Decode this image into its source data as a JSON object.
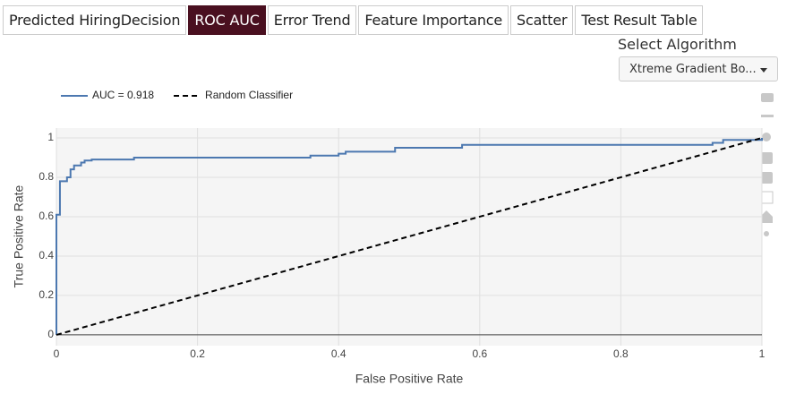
{
  "tabs": [
    "Predicted HiringDecision",
    "ROC AUC",
    "Error Trend",
    "Feature Importance",
    "Scatter",
    "Test Result Table"
  ],
  "active_tab": 1,
  "select": {
    "label": "Select Algorithm",
    "value": "Xtreme Gradient Bo..."
  },
  "chart_data": {
    "type": "line",
    "x_label": "False Positive Rate",
    "y_label": "True Positive Rate",
    "xlim": [
      0,
      1
    ],
    "ylim": [
      -0.055,
      1.05
    ],
    "xticks": [
      0,
      0.2,
      0.4,
      0.6,
      0.8,
      1
    ],
    "yticks": [
      0,
      0.2,
      0.4,
      0.6,
      0.8,
      1
    ],
    "grid": true,
    "legend": "top-left",
    "series": [
      {
        "name": "AUC = 0.918",
        "color": "#4c78b0",
        "line_style": "solid",
        "x": [
          0,
          0,
          0.005,
          0.005,
          0.015,
          0.015,
          0.02,
          0.02,
          0.025,
          0.025,
          0.035,
          0.035,
          0.04,
          0.04,
          0.05,
          0.05,
          0.11,
          0.11,
          0.36,
          0.36,
          0.4,
          0.4,
          0.41,
          0.41,
          0.48,
          0.48,
          0.575,
          0.575,
          0.93,
          0.93,
          0.945,
          0.945,
          1,
          1
        ],
        "values": [
          0,
          0.61,
          0.61,
          0.78,
          0.78,
          0.8,
          0.8,
          0.84,
          0.84,
          0.86,
          0.86,
          0.875,
          0.875,
          0.885,
          0.885,
          0.89,
          0.89,
          0.9,
          0.9,
          0.91,
          0.91,
          0.92,
          0.92,
          0.93,
          0.93,
          0.95,
          0.95,
          0.965,
          0.965,
          0.975,
          0.975,
          0.99,
          0.99,
          1
        ]
      },
      {
        "name": "Random Classifier",
        "color": "#000000",
        "line_style": "dashed",
        "x": [
          0,
          1
        ],
        "values": [
          0,
          1
        ]
      }
    ]
  }
}
